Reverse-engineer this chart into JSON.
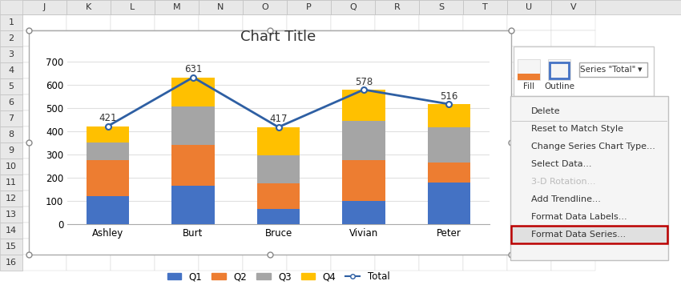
{
  "title": "Chart Title",
  "categories": [
    "Ashley",
    "Burt",
    "Bruce",
    "Vivian",
    "Peter"
  ],
  "Q1": [
    120,
    165,
    65,
    100,
    180
  ],
  "Q2": [
    155,
    175,
    110,
    175,
    85
  ],
  "Q3": [
    75,
    165,
    120,
    170,
    150
  ],
  "Q4": [
    71,
    126,
    122,
    133,
    101
  ],
  "totals": [
    421,
    631,
    417,
    578,
    516
  ],
  "bar_colors": {
    "Q1": "#4472C4",
    "Q2": "#ED7D31",
    "Q3": "#A5A5A5",
    "Q4": "#FFC000"
  },
  "line_color": "#2E5FA3",
  "col_headers": [
    "J",
    "K",
    "L",
    "M",
    "N",
    "O",
    "P",
    "Q",
    "R",
    "S",
    "T",
    "U",
    "V"
  ],
  "row_headers": [
    "1",
    "2",
    "3",
    "4",
    "5",
    "6",
    "7",
    "8",
    "9",
    "10",
    "11",
    "12",
    "13",
    "14",
    "15",
    "16"
  ],
  "ylim": [
    0,
    750
  ],
  "yticks": [
    0,
    100,
    200,
    300,
    400,
    500,
    600,
    700
  ],
  "menu_items": [
    {
      "label": "Delete",
      "highlighted": false,
      "grayed": false
    },
    {
      "label": "Reset to Match Style",
      "highlighted": false,
      "grayed": false
    },
    {
      "label": "Change Series Chart Type...",
      "highlighted": false,
      "grayed": false
    },
    {
      "label": "Select Data...",
      "highlighted": false,
      "grayed": false
    },
    {
      "label": "3-D Rotation...",
      "highlighted": false,
      "grayed": true
    },
    {
      "label": "Add Trendline...",
      "highlighted": false,
      "grayed": false
    },
    {
      "label": "Format Data Labels...",
      "highlighted": false,
      "grayed": false
    },
    {
      "label": "Format Data Series...",
      "highlighted": true,
      "grayed": false
    }
  ]
}
